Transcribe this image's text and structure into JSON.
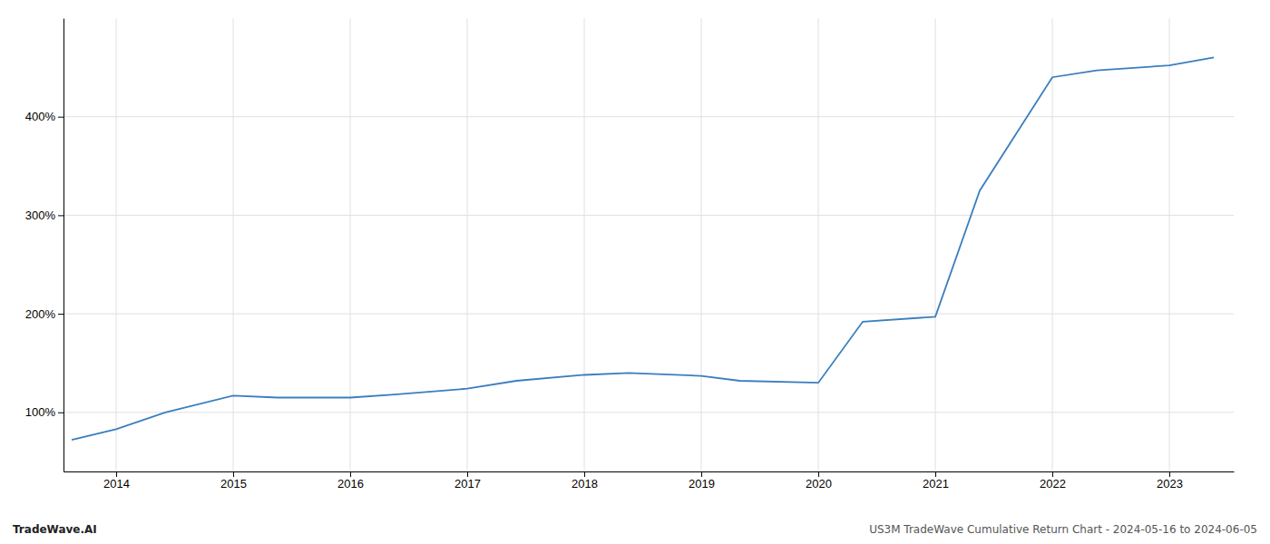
{
  "chart_data": {
    "type": "line",
    "x": [
      2013.62,
      2014.0,
      2014.42,
      2015.0,
      2015.38,
      2016.0,
      2016.38,
      2017.0,
      2017.42,
      2018.0,
      2018.38,
      2019.0,
      2019.33,
      2020.0,
      2020.38,
      2021.0,
      2021.38,
      2022.0,
      2022.38,
      2023.0,
      2023.38
    ],
    "values": [
      72,
      83,
      100,
      117,
      115,
      115,
      118,
      124,
      132,
      138,
      140,
      137,
      132,
      130,
      192,
      197,
      325,
      440,
      447,
      452,
      460
    ],
    "color": "#3a7ebf",
    "xlim": [
      2013.55,
      2023.55
    ],
    "xticks": [
      2014,
      2015,
      2016,
      2017,
      2018,
      2019,
      2020,
      2021,
      2022,
      2023
    ],
    "ylim": [
      40,
      500
    ],
    "yticks": [
      {
        "value": 100,
        "label": "100%"
      },
      {
        "value": 200,
        "label": "200%"
      },
      {
        "value": 300,
        "label": "300%"
      },
      {
        "value": 400,
        "label": "400%"
      }
    ],
    "grid": true,
    "annotations": [
      "TradeWave.AI",
      "US3M TradeWave Cumulative Return Chart - 2024-05-16 to 2024-06-05"
    ]
  }
}
